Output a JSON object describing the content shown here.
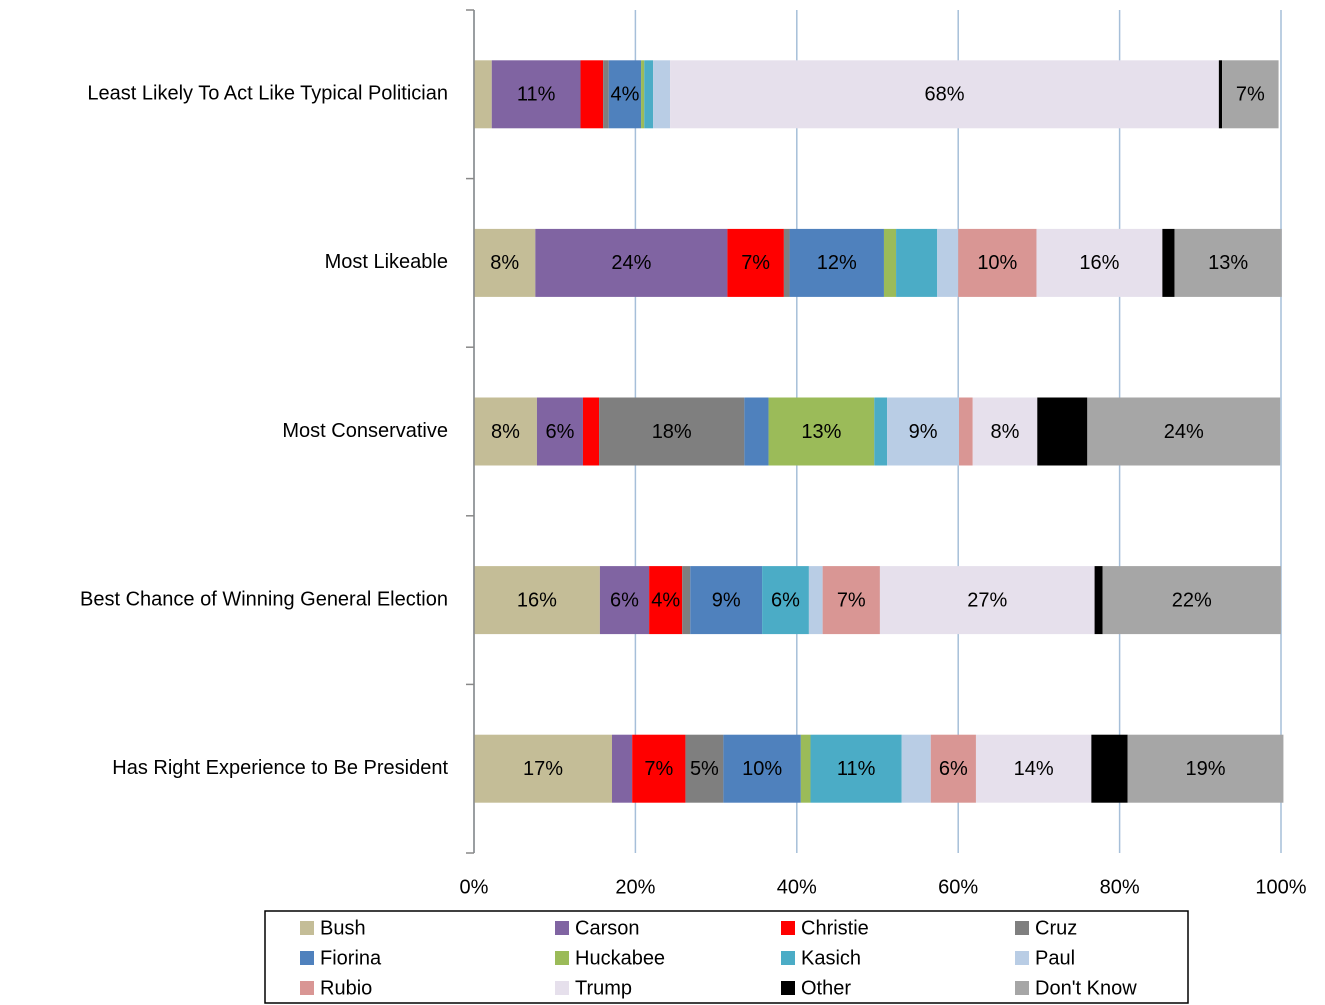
{
  "chart_data": {
    "type": "stacked_bar_horizontal",
    "categories": [
      "Least Likely To Act Like Typical Politician",
      "Most Likeable",
      "Most Conservative",
      "Best Chance of Winning General Election",
      "Has Right Experience to Be President"
    ],
    "xlim": [
      0,
      100
    ],
    "xticks": [
      {
        "value": 0,
        "label": "0%"
      },
      {
        "value": 20,
        "label": "20%"
      },
      {
        "value": 40,
        "label": "40%"
      },
      {
        "value": 60,
        "label": "60%"
      },
      {
        "value": 80,
        "label": "80%"
      },
      {
        "value": 100,
        "label": "100%"
      }
    ],
    "grid": true,
    "legend": "bottom",
    "series": [
      {
        "name": "Bush",
        "color": "#c4bd97",
        "values": [
          2.2,
          7.6,
          7.8,
          15.6,
          17.1
        ],
        "value_labels": [
          null,
          "8%",
          "8%",
          "16%",
          "17%"
        ]
      },
      {
        "name": "Carson",
        "color": "#8064a2",
        "values": [
          11,
          23.8,
          5.7,
          6.1,
          2.5
        ],
        "value_labels": [
          "11%",
          "24%",
          "6%",
          "6%",
          null
        ]
      },
      {
        "name": "Christie",
        "color": "#ff0000",
        "values": [
          2.8,
          7,
          2,
          4.1,
          6.6
        ],
        "value_labels": [
          null,
          "7%",
          null,
          "4%",
          "7%"
        ]
      },
      {
        "name": "Cruz",
        "color": "#7f7f7f",
        "values": [
          0.7,
          0.7,
          18,
          1,
          4.7
        ],
        "value_labels": [
          null,
          null,
          "18%",
          null,
          "5%"
        ]
      },
      {
        "name": "Fiorina",
        "color": "#4f81bd",
        "values": [
          4,
          11.7,
          3,
          8.9,
          9.6
        ],
        "value_labels": [
          "4%",
          "12%",
          null,
          "9%",
          "10%"
        ]
      },
      {
        "name": "Huckabee",
        "color": "#9bbb59",
        "values": [
          0.4,
          1.5,
          13.1,
          0,
          1.2
        ],
        "value_labels": [
          null,
          null,
          "13%",
          null,
          null
        ]
      },
      {
        "name": "Kasich",
        "color": "#4bacc6",
        "values": [
          1.1,
          5.1,
          1.6,
          5.8,
          11.3
        ],
        "value_labels": [
          null,
          null,
          null,
          "6%",
          "11%"
        ]
      },
      {
        "name": "Paul",
        "color": "#b9cde5",
        "values": [
          2.1,
          2.6,
          8.9,
          1.7,
          3.6
        ],
        "value_labels": [
          null,
          null,
          "9%",
          null,
          null
        ]
      },
      {
        "name": "Rubio",
        "color": "#d99694",
        "values": [
          0,
          9.7,
          1.7,
          7.1,
          5.6
        ],
        "value_labels": [
          null,
          "10%",
          null,
          "7%",
          "6%"
        ]
      },
      {
        "name": "Trump",
        "color": "#e6e0ec",
        "values": [
          68,
          15.6,
          8,
          26.6,
          14.3
        ],
        "value_labels": [
          "68%",
          "16%",
          "8%",
          "27%",
          "14%"
        ]
      },
      {
        "name": "Other",
        "color": "#000000",
        "values": [
          0.4,
          1.5,
          6.2,
          1,
          4.5
        ],
        "value_labels": [
          null,
          null,
          null,
          null,
          null
        ]
      },
      {
        "name": "Don't Know",
        "color": "#a6a6a6",
        "values": [
          7,
          13.3,
          23.9,
          22.1,
          19.3
        ],
        "value_labels": [
          "7%",
          "13%",
          "24%",
          "22%",
          "19%"
        ]
      }
    ]
  }
}
